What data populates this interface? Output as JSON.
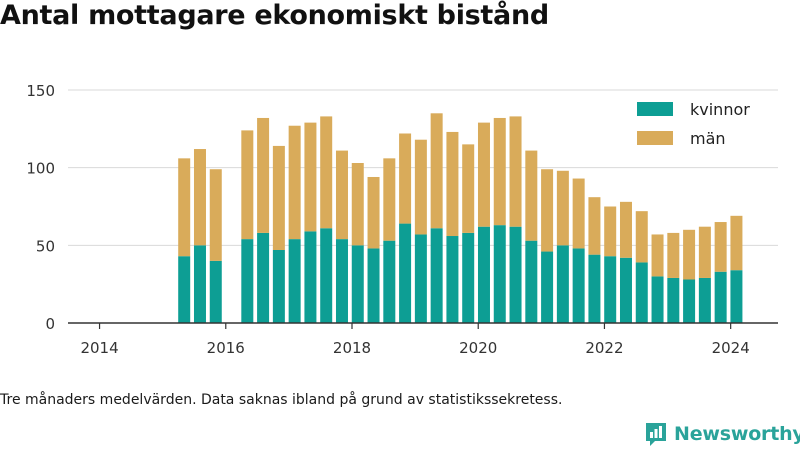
{
  "title": "Antal mottagare ekonomiskt bistånd",
  "footnote": "Tre månaders medelvärden. Data saknas ibland på grund av statistikssekretess.",
  "brand": {
    "name": "Newsworthy",
    "color": "#2aa39a"
  },
  "chart_data": {
    "type": "bar",
    "stacked": true,
    "x_unit": "date",
    "xlim": [
      "2013-07-01",
      "2024-10-01"
    ],
    "ylim": [
      0,
      150
    ],
    "y_ticks": [
      0,
      50,
      100,
      150
    ],
    "x_ticks": [
      "2014",
      "2016",
      "2018",
      "2020",
      "2022",
      "2024"
    ],
    "grid": true,
    "legend_position": "top-right",
    "periods": [
      "2015-05",
      "2015-08",
      "2015-11",
      "2016-05",
      "2016-08",
      "2016-11",
      "2017-02",
      "2017-05",
      "2017-08",
      "2017-11",
      "2018-02",
      "2018-05",
      "2018-08",
      "2018-11",
      "2019-02",
      "2019-05",
      "2019-08",
      "2019-11",
      "2020-02",
      "2020-05",
      "2020-08",
      "2020-11",
      "2021-02",
      "2021-05",
      "2021-08",
      "2021-11",
      "2022-02",
      "2022-05",
      "2022-08",
      "2022-11",
      "2023-02",
      "2023-05",
      "2023-08",
      "2023-11",
      "2024-02"
    ],
    "series": [
      {
        "name": "kvinnor",
        "color": "#0d9e94",
        "values": [
          43,
          50,
          40,
          54,
          58,
          47,
          54,
          59,
          61,
          54,
          50,
          48,
          53,
          64,
          57,
          61,
          56,
          58,
          62,
          63,
          62,
          53,
          46,
          50,
          48,
          44,
          43,
          42,
          39,
          30,
          29,
          28,
          29,
          33,
          34
        ]
      },
      {
        "name": "män",
        "color": "#d9ab5a",
        "values": [
          63,
          62,
          59,
          70,
          74,
          67,
          73,
          70,
          72,
          57,
          53,
          46,
          53,
          58,
          61,
          74,
          67,
          57,
          67,
          69,
          71,
          58,
          53,
          48,
          45,
          37,
          32,
          36,
          33,
          27,
          29,
          32,
          33,
          32,
          35
        ]
      }
    ]
  }
}
